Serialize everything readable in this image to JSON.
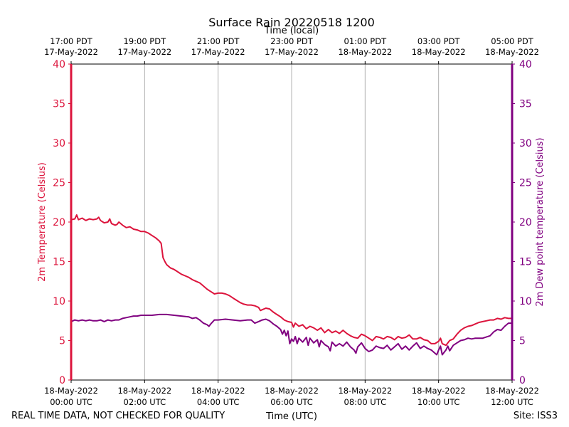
{
  "chart_data": {
    "type": "line",
    "title": "Surface Rain 20220518 1200",
    "top_axis_label": "Time (local)",
    "xlabel": "Time (UTC)",
    "ylabel_left": "2m Temperature (Celsius)",
    "ylabel_right": "2m Dew point temperature (Celsius)",
    "footer_left": "REAL TIME DATA, NOT CHECKED FOR QUALITY",
    "footer_right": "Site: ISS3",
    "colors": {
      "temperature": "#dc143c",
      "dewpoint": "#800080",
      "grid": "#b0b0b0"
    },
    "xlim_hours_utc": [
      0,
      12
    ],
    "ylim": [
      0,
      40
    ],
    "yticks": [
      0,
      5,
      10,
      15,
      20,
      25,
      30,
      35,
      40
    ],
    "grid": "vertical",
    "x_ticks_utc": [
      {
        "hour": 0,
        "line1": "18-May-2022",
        "line2": "00:00 UTC"
      },
      {
        "hour": 2,
        "line1": "18-May-2022",
        "line2": "02:00 UTC"
      },
      {
        "hour": 4,
        "line1": "18-May-2022",
        "line2": "04:00 UTC"
      },
      {
        "hour": 6,
        "line1": "18-May-2022",
        "line2": "06:00 UTC"
      },
      {
        "hour": 8,
        "line1": "18-May-2022",
        "line2": "08:00 UTC"
      },
      {
        "hour": 10,
        "line1": "18-May-2022",
        "line2": "10:00 UTC"
      },
      {
        "hour": 12,
        "line1": "18-May-2022",
        "line2": "12:00 UTC"
      }
    ],
    "x_ticks_local": [
      {
        "hour": 0,
        "line1": "17:00 PDT",
        "line2": "17-May-2022"
      },
      {
        "hour": 2,
        "line1": "19:00 PDT",
        "line2": "17-May-2022"
      },
      {
        "hour": 4,
        "line1": "21:00 PDT",
        "line2": "17-May-2022"
      },
      {
        "hour": 6,
        "line1": "23:00 PDT",
        "line2": "17-May-2022"
      },
      {
        "hour": 8,
        "line1": "01:00 PDT",
        "line2": "18-May-2022"
      },
      {
        "hour": 10,
        "line1": "03:00 PDT",
        "line2": "18-May-2022"
      },
      {
        "hour": 12,
        "line1": "05:00 PDT",
        "line2": "18-May-2022"
      }
    ],
    "series": [
      {
        "name": "2m Temperature",
        "axis": "left",
        "color": "#dc143c",
        "points": [
          [
            0.0,
            20.3
          ],
          [
            0.1,
            20.4
          ],
          [
            0.15,
            20.9
          ],
          [
            0.2,
            20.3
          ],
          [
            0.3,
            20.5
          ],
          [
            0.4,
            20.2
          ],
          [
            0.5,
            20.4
          ],
          [
            0.6,
            20.3
          ],
          [
            0.7,
            20.4
          ],
          [
            0.75,
            20.6
          ],
          [
            0.8,
            20.2
          ],
          [
            0.9,
            19.9
          ],
          [
            1.0,
            20.0
          ],
          [
            1.05,
            20.4
          ],
          [
            1.1,
            19.8
          ],
          [
            1.2,
            19.6
          ],
          [
            1.25,
            19.7
          ],
          [
            1.3,
            20.0
          ],
          [
            1.4,
            19.6
          ],
          [
            1.5,
            19.3
          ],
          [
            1.6,
            19.4
          ],
          [
            1.7,
            19.1
          ],
          [
            1.8,
            19.0
          ],
          [
            1.9,
            18.8
          ],
          [
            2.0,
            18.8
          ],
          [
            2.1,
            18.6
          ],
          [
            2.2,
            18.3
          ],
          [
            2.3,
            18.0
          ],
          [
            2.4,
            17.6
          ],
          [
            2.45,
            17.3
          ],
          [
            2.5,
            15.5
          ],
          [
            2.55,
            15.0
          ],
          [
            2.6,
            14.6
          ],
          [
            2.7,
            14.2
          ],
          [
            2.8,
            14.0
          ],
          [
            2.9,
            13.7
          ],
          [
            3.0,
            13.4
          ],
          [
            3.1,
            13.2
          ],
          [
            3.2,
            13.0
          ],
          [
            3.3,
            12.7
          ],
          [
            3.4,
            12.5
          ],
          [
            3.5,
            12.3
          ],
          [
            3.6,
            11.9
          ],
          [
            3.7,
            11.5
          ],
          [
            3.8,
            11.2
          ],
          [
            3.9,
            10.9
          ],
          [
            4.0,
            11.0
          ],
          [
            4.1,
            11.0
          ],
          [
            4.2,
            10.9
          ],
          [
            4.3,
            10.7
          ],
          [
            4.4,
            10.4
          ],
          [
            4.5,
            10.1
          ],
          [
            4.6,
            9.8
          ],
          [
            4.7,
            9.6
          ],
          [
            4.8,
            9.5
          ],
          [
            4.9,
            9.5
          ],
          [
            5.0,
            9.4
          ],
          [
            5.1,
            9.2
          ],
          [
            5.15,
            8.8
          ],
          [
            5.2,
            8.9
          ],
          [
            5.3,
            9.1
          ],
          [
            5.4,
            9.0
          ],
          [
            5.5,
            8.6
          ],
          [
            5.6,
            8.3
          ],
          [
            5.7,
            8.0
          ],
          [
            5.8,
            7.6
          ],
          [
            5.9,
            7.4
          ],
          [
            6.0,
            7.3
          ],
          [
            6.05,
            6.7
          ],
          [
            6.1,
            7.2
          ],
          [
            6.2,
            6.8
          ],
          [
            6.3,
            7.0
          ],
          [
            6.4,
            6.5
          ],
          [
            6.5,
            6.8
          ],
          [
            6.6,
            6.6
          ],
          [
            6.7,
            6.3
          ],
          [
            6.8,
            6.6
          ],
          [
            6.9,
            6.0
          ],
          [
            7.0,
            6.4
          ],
          [
            7.1,
            6.0
          ],
          [
            7.2,
            6.2
          ],
          [
            7.3,
            5.9
          ],
          [
            7.4,
            6.3
          ],
          [
            7.5,
            5.9
          ],
          [
            7.6,
            5.6
          ],
          [
            7.7,
            5.4
          ],
          [
            7.8,
            5.3
          ],
          [
            7.9,
            5.8
          ],
          [
            8.0,
            5.6
          ],
          [
            8.1,
            5.3
          ],
          [
            8.2,
            5.0
          ],
          [
            8.3,
            5.5
          ],
          [
            8.4,
            5.4
          ],
          [
            8.5,
            5.2
          ],
          [
            8.6,
            5.5
          ],
          [
            8.7,
            5.4
          ],
          [
            8.8,
            5.1
          ],
          [
            8.9,
            5.5
          ],
          [
            9.0,
            5.3
          ],
          [
            9.1,
            5.4
          ],
          [
            9.2,
            5.7
          ],
          [
            9.3,
            5.2
          ],
          [
            9.4,
            5.2
          ],
          [
            9.5,
            5.4
          ],
          [
            9.6,
            5.1
          ],
          [
            9.7,
            5.0
          ],
          [
            9.8,
            4.6
          ],
          [
            9.9,
            4.6
          ],
          [
            10.0,
            4.9
          ],
          [
            10.05,
            5.3
          ],
          [
            10.1,
            4.6
          ],
          [
            10.2,
            4.4
          ],
          [
            10.3,
            5.0
          ],
          [
            10.4,
            5.2
          ],
          [
            10.5,
            5.8
          ],
          [
            10.6,
            6.3
          ],
          [
            10.7,
            6.6
          ],
          [
            10.8,
            6.8
          ],
          [
            10.9,
            6.9
          ],
          [
            11.0,
            7.1
          ],
          [
            11.1,
            7.3
          ],
          [
            11.2,
            7.4
          ],
          [
            11.3,
            7.5
          ],
          [
            11.4,
            7.6
          ],
          [
            11.5,
            7.6
          ],
          [
            11.6,
            7.8
          ],
          [
            11.7,
            7.7
          ],
          [
            11.8,
            7.9
          ],
          [
            11.9,
            7.8
          ],
          [
            12.0,
            7.8
          ]
        ]
      },
      {
        "name": "2m Dew point temperature",
        "axis": "right",
        "color": "#800080",
        "points": [
          [
            0.0,
            7.4
          ],
          [
            0.1,
            7.6
          ],
          [
            0.2,
            7.5
          ],
          [
            0.3,
            7.6
          ],
          [
            0.4,
            7.5
          ],
          [
            0.5,
            7.6
          ],
          [
            0.6,
            7.5
          ],
          [
            0.7,
            7.5
          ],
          [
            0.8,
            7.6
          ],
          [
            0.9,
            7.4
          ],
          [
            1.0,
            7.6
          ],
          [
            1.1,
            7.5
          ],
          [
            1.2,
            7.6
          ],
          [
            1.3,
            7.6
          ],
          [
            1.4,
            7.8
          ],
          [
            1.5,
            7.9
          ],
          [
            1.6,
            8.0
          ],
          [
            1.7,
            8.1
          ],
          [
            1.8,
            8.1
          ],
          [
            1.9,
            8.2
          ],
          [
            2.0,
            8.2
          ],
          [
            2.2,
            8.2
          ],
          [
            2.4,
            8.3
          ],
          [
            2.6,
            8.3
          ],
          [
            2.8,
            8.2
          ],
          [
            3.0,
            8.1
          ],
          [
            3.2,
            8.0
          ],
          [
            3.3,
            7.8
          ],
          [
            3.4,
            7.9
          ],
          [
            3.5,
            7.6
          ],
          [
            3.6,
            7.2
          ],
          [
            3.7,
            7.0
          ],
          [
            3.75,
            6.8
          ],
          [
            3.8,
            7.1
          ],
          [
            3.9,
            7.6
          ],
          [
            4.0,
            7.6
          ],
          [
            4.2,
            7.7
          ],
          [
            4.4,
            7.6
          ],
          [
            4.6,
            7.5
          ],
          [
            4.8,
            7.6
          ],
          [
            4.9,
            7.6
          ],
          [
            5.0,
            7.2
          ],
          [
            5.1,
            7.4
          ],
          [
            5.2,
            7.6
          ],
          [
            5.3,
            7.7
          ],
          [
            5.4,
            7.5
          ],
          [
            5.5,
            7.1
          ],
          [
            5.6,
            6.8
          ],
          [
            5.7,
            6.4
          ],
          [
            5.75,
            5.8
          ],
          [
            5.8,
            6.3
          ],
          [
            5.85,
            5.6
          ],
          [
            5.9,
            6.2
          ],
          [
            5.95,
            4.6
          ],
          [
            6.0,
            5.2
          ],
          [
            6.05,
            4.9
          ],
          [
            6.1,
            5.5
          ],
          [
            6.15,
            4.6
          ],
          [
            6.2,
            5.3
          ],
          [
            6.3,
            4.8
          ],
          [
            6.4,
            5.4
          ],
          [
            6.45,
            4.4
          ],
          [
            6.5,
            5.3
          ],
          [
            6.6,
            4.7
          ],
          [
            6.7,
            5.1
          ],
          [
            6.75,
            4.2
          ],
          [
            6.8,
            5.0
          ],
          [
            6.9,
            4.5
          ],
          [
            7.0,
            4.2
          ],
          [
            7.05,
            3.7
          ],
          [
            7.1,
            4.8
          ],
          [
            7.2,
            4.3
          ],
          [
            7.3,
            4.6
          ],
          [
            7.4,
            4.3
          ],
          [
            7.5,
            4.8
          ],
          [
            7.6,
            4.2
          ],
          [
            7.7,
            3.8
          ],
          [
            7.75,
            3.4
          ],
          [
            7.8,
            4.2
          ],
          [
            7.9,
            4.7
          ],
          [
            8.0,
            4.0
          ],
          [
            8.1,
            3.6
          ],
          [
            8.2,
            3.8
          ],
          [
            8.3,
            4.3
          ],
          [
            8.4,
            4.1
          ],
          [
            8.5,
            4.0
          ],
          [
            8.6,
            4.4
          ],
          [
            8.7,
            3.8
          ],
          [
            8.8,
            4.2
          ],
          [
            8.9,
            4.6
          ],
          [
            9.0,
            3.9
          ],
          [
            9.1,
            4.3
          ],
          [
            9.2,
            3.8
          ],
          [
            9.3,
            4.3
          ],
          [
            9.4,
            4.7
          ],
          [
            9.5,
            4.0
          ],
          [
            9.6,
            4.3
          ],
          [
            9.7,
            4.0
          ],
          [
            9.8,
            3.8
          ],
          [
            9.9,
            3.4
          ],
          [
            9.95,
            3.2
          ],
          [
            10.0,
            3.8
          ],
          [
            10.05,
            4.3
          ],
          [
            10.1,
            3.2
          ],
          [
            10.2,
            3.8
          ],
          [
            10.25,
            4.3
          ],
          [
            10.3,
            3.7
          ],
          [
            10.4,
            4.4
          ],
          [
            10.5,
            4.7
          ],
          [
            10.6,
            5.0
          ],
          [
            10.7,
            5.1
          ],
          [
            10.8,
            5.3
          ],
          [
            10.9,
            5.2
          ],
          [
            11.0,
            5.3
          ],
          [
            11.2,
            5.3
          ],
          [
            11.4,
            5.6
          ],
          [
            11.5,
            6.1
          ],
          [
            11.6,
            6.4
          ],
          [
            11.7,
            6.3
          ],
          [
            11.8,
            6.8
          ],
          [
            11.9,
            7.2
          ],
          [
            12.0,
            7.2
          ]
        ]
      }
    ]
  }
}
